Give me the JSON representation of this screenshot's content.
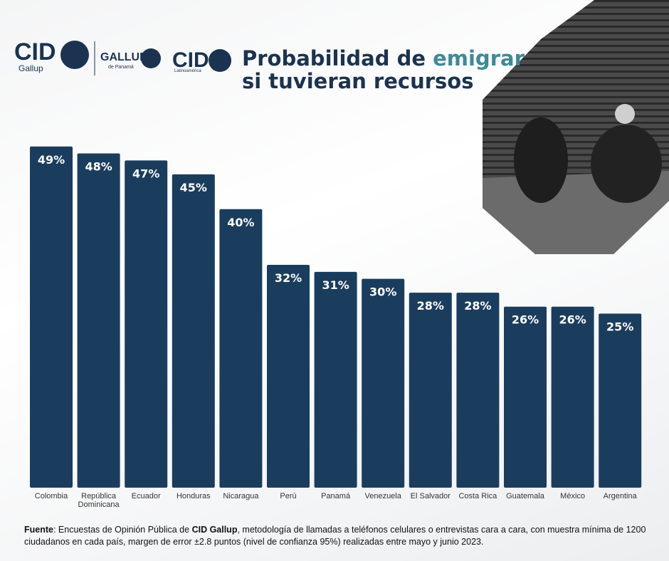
{
  "chart_data": {
    "type": "bar",
    "title": "Probabilidad de",
    "title_highlight": "emigrar",
    "title_line2": "si tuvieran recursos",
    "logos": {
      "cid": "CID",
      "cid_sub": "Gallup",
      "gallup": "GALLUP",
      "gallup_sub": "de Panamá",
      "cid2": "CID",
      "cid2_sub": "Latinoamérica"
    },
    "categories": [
      "Colombia",
      "República Dominicana",
      "Ecuador",
      "Honduras",
      "Nicaragua",
      "Perú",
      "Panamá",
      "Venezuela",
      "El Salvador",
      "Costa Rica",
      "Guatemala",
      "México",
      "Argentina"
    ],
    "values": [
      49,
      48,
      47,
      45,
      40,
      32,
      31,
      30,
      28,
      28,
      26,
      26,
      25
    ],
    "value_labels": [
      "49%",
      "48%",
      "47%",
      "45%",
      "40%",
      "32%",
      "31%",
      "30%",
      "28%",
      "28%",
      "26%",
      "26%",
      "25%"
    ],
    "color": "#1b3d5d",
    "source": {
      "label": "Fuente",
      "text1": ": Encuestas de Opinión Pública de ",
      "org": "CID Gallup",
      "text2": ", metodología de llamadas a teléfonos celulares o entrevistas cara a cara, con muestra mínima de 1200 ciudadanos en cada país, margen de error ±2.8 puntos (nivel de confianza 95%) realizadas entre mayo y junio 2023."
    }
  }
}
